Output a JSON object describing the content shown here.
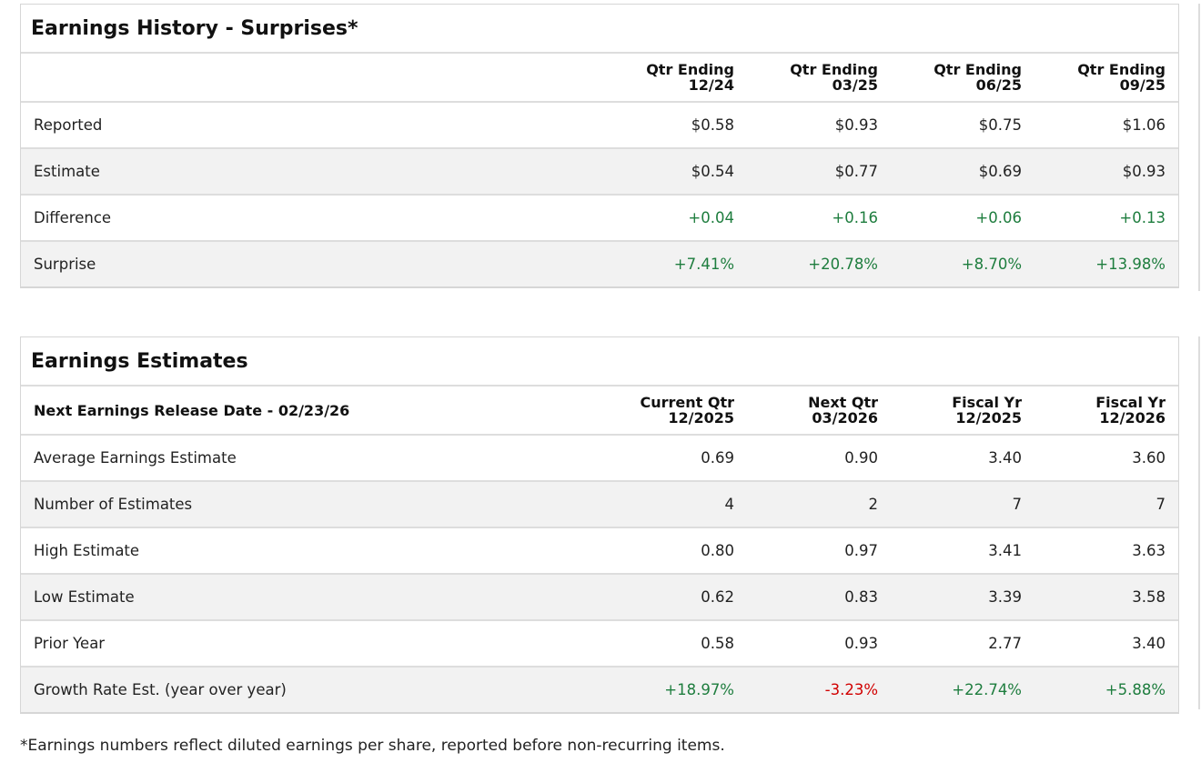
{
  "history": {
    "title": "Earnings History - Surprises*",
    "columns": [
      [
        "Qtr Ending",
        "12/24"
      ],
      [
        "Qtr Ending",
        "03/25"
      ],
      [
        "Qtr Ending",
        "06/25"
      ],
      [
        "Qtr Ending",
        "09/25"
      ]
    ],
    "rows": [
      {
        "label": "Reported",
        "values": [
          "$0.58",
          "$0.93",
          "$0.75",
          "$1.06"
        ]
      },
      {
        "label": "Estimate",
        "values": [
          "$0.54",
          "$0.77",
          "$0.69",
          "$0.93"
        ]
      },
      {
        "label": "Difference",
        "values": [
          "+0.04",
          "+0.16",
          "+0.06",
          "+0.13"
        ]
      },
      {
        "label": "Surprise",
        "values": [
          "+7.41%",
          "+20.78%",
          "+8.70%",
          "+13.98%"
        ]
      }
    ]
  },
  "estimates": {
    "title": "Earnings Estimates",
    "header_label": "Next Earnings Release Date - 02/23/26",
    "columns": [
      [
        "Current Qtr",
        "12/2025"
      ],
      [
        "Next Qtr",
        "03/2026"
      ],
      [
        "Fiscal Yr",
        "12/2025"
      ],
      [
        "Fiscal Yr",
        "12/2026"
      ]
    ],
    "rows": [
      {
        "label": "Average Earnings Estimate",
        "values": [
          "0.69",
          "0.90",
          "3.40",
          "3.60"
        ]
      },
      {
        "label": "Number of Estimates",
        "values": [
          "4",
          "2",
          "7",
          "7"
        ]
      },
      {
        "label": "High Estimate",
        "values": [
          "0.80",
          "0.97",
          "3.41",
          "3.63"
        ]
      },
      {
        "label": "Low Estimate",
        "values": [
          "0.62",
          "0.83",
          "3.39",
          "3.58"
        ]
      },
      {
        "label": "Prior Year",
        "values": [
          "0.58",
          "0.93",
          "2.77",
          "3.40"
        ]
      },
      {
        "label": "Growth Rate Est. (year over year)",
        "values": [
          "+18.97%",
          "-3.23%",
          "+22.74%",
          "+5.88%"
        ]
      }
    ]
  },
  "footnote": "*Earnings numbers reflect diluted earnings per share, reported before non-recurring items.",
  "colors": {
    "positive": "#1e7d3e",
    "negative": "#d10000"
  }
}
